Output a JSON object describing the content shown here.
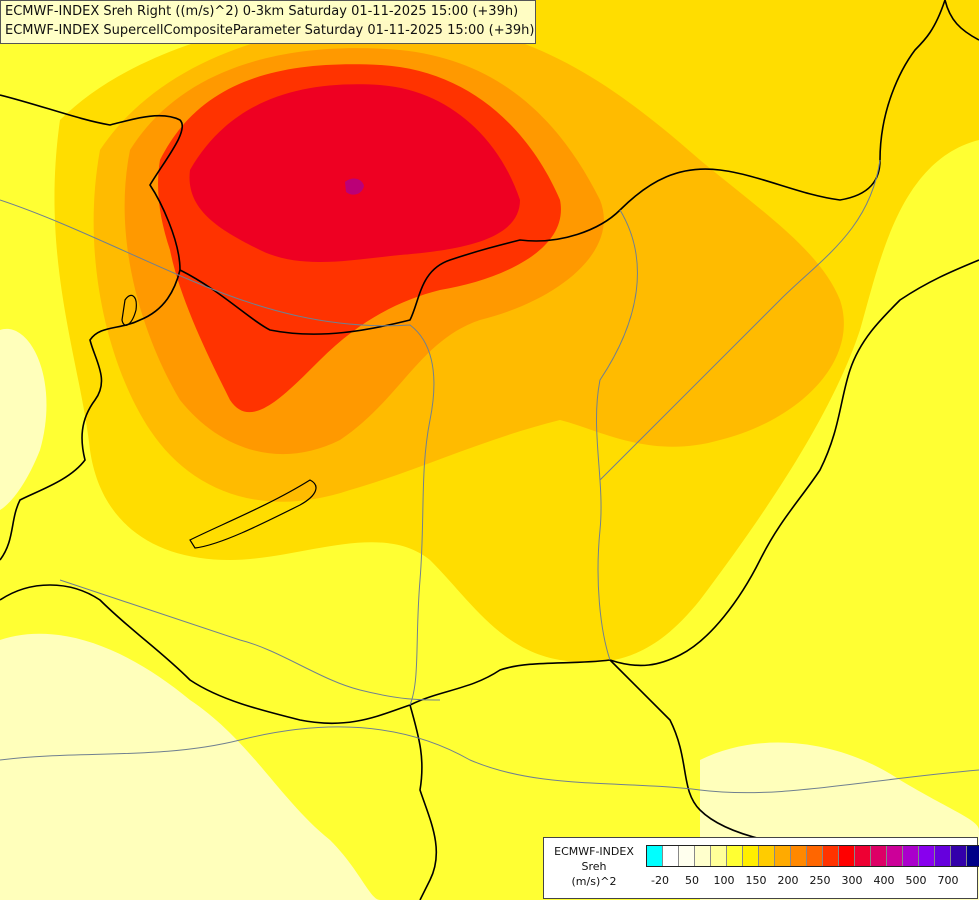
{
  "title": {
    "line1": "ECMWF-INDEX Sreh Right ((m/s)^2) 0-3km Saturday 01-11-2025 15:00 (+39h)",
    "line2": "ECMWF-INDEX SupercellCompositeParameter Saturday 01-11-2025 15:00 (+39h)"
  },
  "legend": {
    "title_lines": [
      "ECMWF-INDEX",
      "Sreh",
      "(m/s)^2"
    ],
    "colors": [
      "#00ffff",
      "#ffffff",
      "#ffffee",
      "#ffffcc",
      "#ffff99",
      "#ffff33",
      "#ffee00",
      "#ffcc00",
      "#ffaa00",
      "#ff8800",
      "#ff6600",
      "#ff3300",
      "#ff0000",
      "#ee0033",
      "#dd0066",
      "#cc0099",
      "#aa00cc",
      "#8800ee",
      "#6600dd",
      "#3300aa",
      "#000088"
    ],
    "ticks": [
      "-20",
      "50",
      "100",
      "150",
      "200",
      "250",
      "300",
      "400",
      "500",
      "700"
    ]
  },
  "map": {
    "field_colors": {
      "pale": "#ffffbb",
      "light_yellow": "#ffff55",
      "yellow": "#ffff00",
      "gold": "#ffdd00",
      "amber": "#ffbb00",
      "orange": "#ff9900",
      "dark_orange": "#ff6600",
      "red_orange": "#ff3300",
      "red": "#ee0022",
      "crimson": "#dd0044",
      "magenta": "#bb0077"
    },
    "border_color": "#000000",
    "river_color": "#708090"
  }
}
